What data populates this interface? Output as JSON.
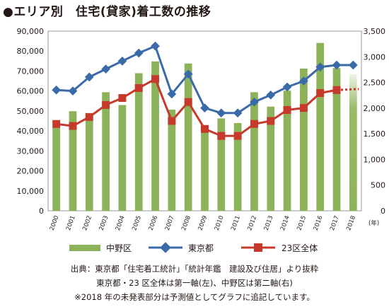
{
  "title": "●エリア別　住宅(貸家)着工数の推移",
  "notes": [
    "出典：東京都「住宅着工統計」「統計年鑑　建設及び住居」より抜粋",
    "東京都・23 区全体は第一軸(左)、中野区は第二軸(右)",
    "※2018 年の未発表部分は予測値としてグラフに追記しています。"
  ],
  "chart_data": {
    "type": "bar",
    "categories": [
      "2000",
      "2001",
      "2002",
      "2003",
      "2004",
      "2005",
      "2006",
      "2007",
      "2008",
      "2009",
      "2010",
      "2011",
      "2012",
      "2013",
      "2014",
      "2015",
      "2016",
      "2017",
      "2018"
    ],
    "x_unit_label": "(年)",
    "series": [
      {
        "name": "中野区",
        "type": "bar",
        "axis": "right",
        "color": "#8db35a",
        "values": [
          1640,
          1940,
          1770,
          2310,
          2060,
          2680,
          2910,
          1970,
          2870,
          1550,
          1800,
          1710,
          2310,
          2030,
          2340,
          2770,
          3270,
          2780,
          2660
        ],
        "projected_last": true
      },
      {
        "name": "東京都",
        "type": "line",
        "axis": "left",
        "color": "#3a6aa8",
        "marker": "diamond",
        "values": [
          60500,
          60000,
          67000,
          71000,
          75000,
          79000,
          82500,
          58500,
          68500,
          51500,
          49000,
          49000,
          54500,
          58000,
          62000,
          65000,
          72000,
          73000,
          73000
        ]
      },
      {
        "name": "23区全体",
        "type": "line",
        "axis": "left",
        "color": "#c63a2c",
        "marker": "square",
        "values": [
          43500,
          42500,
          47000,
          53000,
          56500,
          61500,
          66000,
          45000,
          54500,
          41000,
          37500,
          37500,
          43500,
          45000,
          50500,
          51500,
          59000,
          60500,
          61000
        ],
        "projected_last": true
      }
    ],
    "left_axis": {
      "ylim": [
        0,
        90000
      ],
      "ticks": [
        "0",
        "10,000",
        "20,000",
        "30,000",
        "40,000",
        "50,000",
        "60,000",
        "70,000",
        "80,000",
        "90,000"
      ]
    },
    "right_axis": {
      "ylim": [
        0,
        3500
      ],
      "ticks": [
        "0",
        "500",
        "1,000",
        "1,500",
        "2,000",
        "2,500",
        "3,000",
        "3,500"
      ]
    },
    "grid": false,
    "legend_position": "bottom"
  }
}
